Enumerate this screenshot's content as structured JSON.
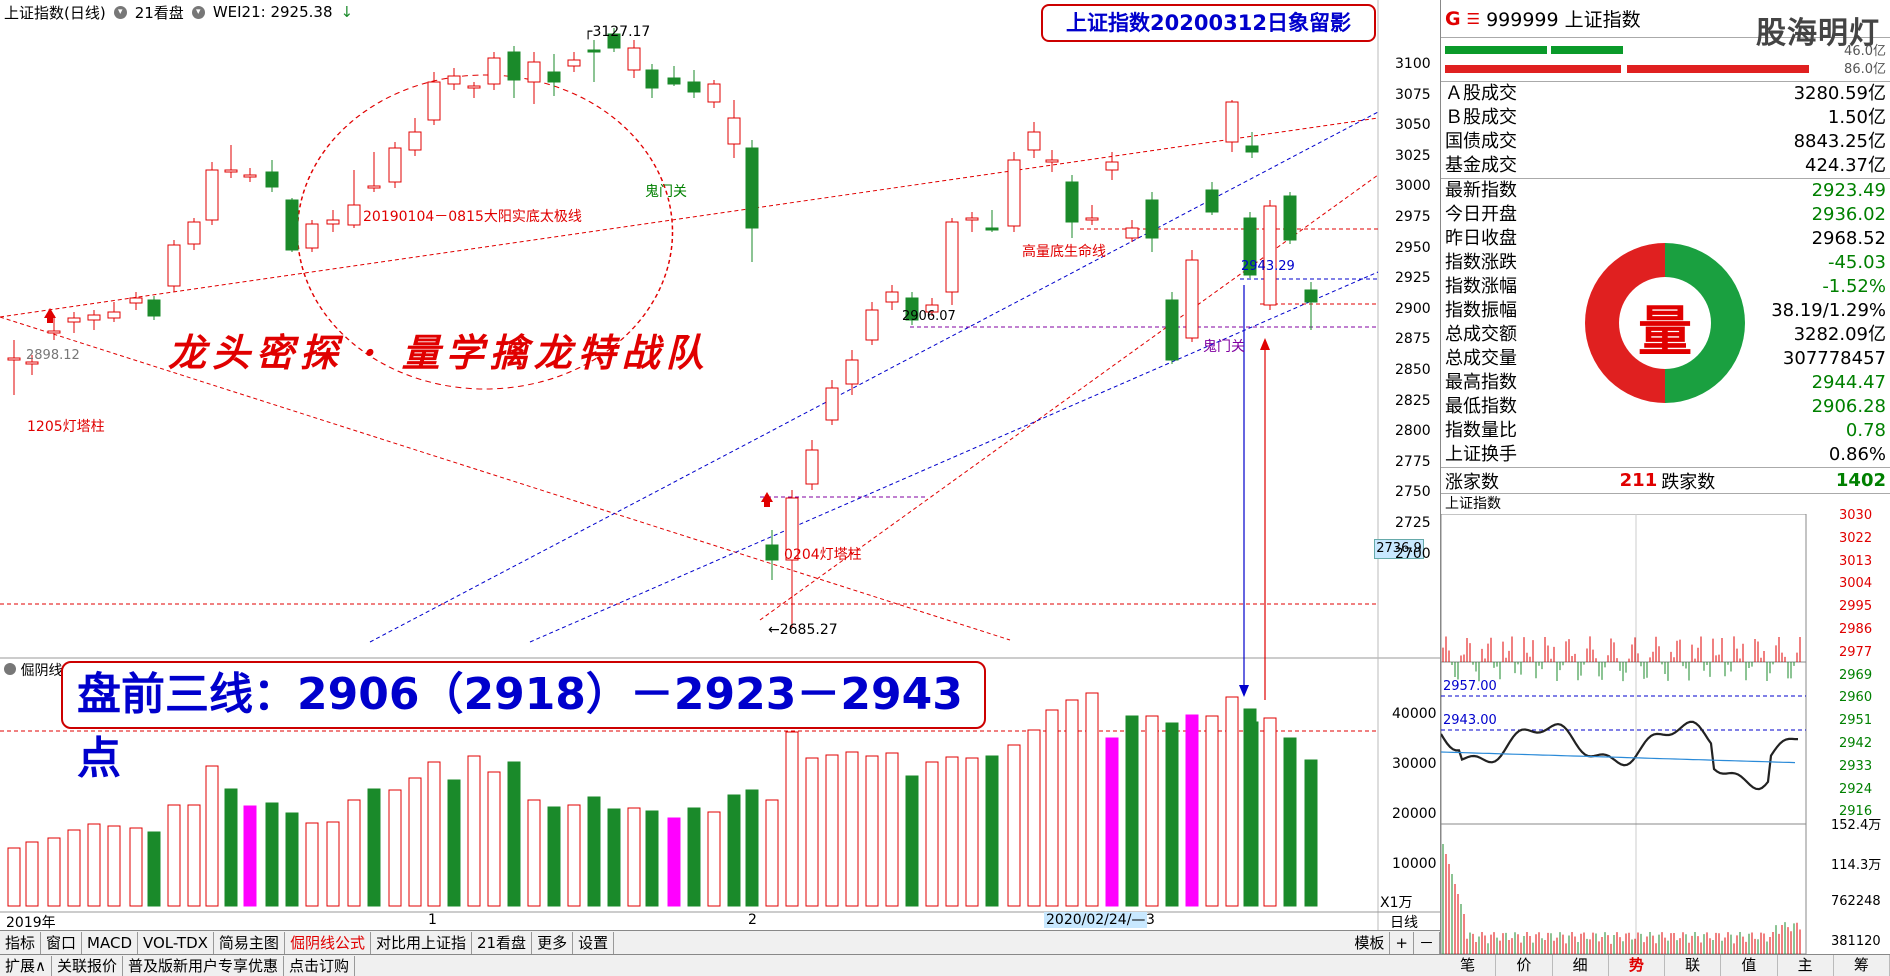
{
  "topbar": {
    "symbol_label": "上证指数(日线)",
    "view_label": "21看盘",
    "indicator": "WEI21: 2925.38"
  },
  "title_box": "上证指数20200312日象留影",
  "banner": "龙头密探 · 量学擒龙特战队",
  "big_box": "盘前三线：2906（2918）－2923－2943点",
  "annotations": {
    "peak": "3127.17",
    "trough": "2685.27",
    "line_label": "20190104－0815大阳实底太极线",
    "guimen1": "鬼门关",
    "guimen2": "鬼门关",
    "lifeline": "高量底生命线",
    "lamp1205": "1205灯塔柱",
    "lamp0204": "0204灯塔柱",
    "v2943": "2943.29",
    "v2906": "2906.07",
    "v2898": "2898.12",
    "price_tag": "2736.9"
  },
  "price_axis": [
    "3100",
    "3075",
    "3050",
    "3025",
    "3000",
    "2975",
    "2950",
    "2925",
    "2900",
    "2875",
    "2850",
    "2825",
    "2800",
    "2775",
    "2750",
    "2725",
    "2700"
  ],
  "vol_axis": [
    "40000",
    "30000",
    "20000",
    "10000",
    "X1万"
  ],
  "vol_label": "倔阴线",
  "date_axis": {
    "y2019": "2019年",
    "m1": "1",
    "m2": "2",
    "date_box": "2020/02/24/—",
    "m3": "3",
    "period": "日线"
  },
  "bottom_tabs": [
    "指标",
    "窗口",
    "MACD",
    "VOL-TDX",
    "简易主图",
    "倔阴线公式",
    "对比用上证指",
    "21看盘",
    "更多",
    "设置"
  ],
  "bottom_right": [
    "模板",
    "+",
    "－"
  ],
  "bottom_tabs2": [
    "扩展∧",
    "关联报价",
    "普及版新用户专享优惠",
    "点击订购"
  ],
  "right_panel": {
    "header_g": "G",
    "header_eq": "☰",
    "code": "999999 上证指数",
    "watermark": "股海明灯",
    "bar_vals": [
      "46.0亿",
      "86.0亿"
    ],
    "sec1": [
      {
        "label": "Ａ股成交",
        "value": "3280.59亿",
        "color": "black"
      },
      {
        "label": "Ｂ股成交",
        "value": "1.50亿",
        "color": "black"
      },
      {
        "label": "国债成交",
        "value": "8843.25亿",
        "color": "black"
      },
      {
        "label": "基金成交",
        "value": "424.37亿",
        "color": "black"
      }
    ],
    "sec2": [
      {
        "label": "最新指数",
        "value": "2923.49",
        "color": "green"
      },
      {
        "label": "今日开盘",
        "value": "2936.02",
        "color": "green"
      },
      {
        "label": "昨日收盘",
        "value": "2968.52",
        "color": "black"
      },
      {
        "label": "指数涨跌",
        "value": "-45.03",
        "color": "green"
      },
      {
        "label": "指数涨幅",
        "value": "-1.52%",
        "color": "green"
      },
      {
        "label": "指数振幅",
        "value": "38.19/1.29%",
        "color": "black"
      },
      {
        "label": "总成交额",
        "value": "3282.09亿",
        "color": "black"
      },
      {
        "label": "总成交量",
        "value": "307778457",
        "color": "black"
      },
      {
        "label": "最高指数",
        "value": "2944.47",
        "color": "green"
      },
      {
        "label": "最低指数",
        "value": "2906.28",
        "color": "green"
      },
      {
        "label": "指数量比",
        "value": "0.78",
        "color": "green"
      },
      {
        "label": "上证换手",
        "value": "0.86%",
        "color": "black"
      }
    ],
    "logo_char": "量",
    "up_label": "涨家数",
    "up_value": "211",
    "down_label": "跌家数",
    "down_value": "1402",
    "mini_title": "上证指数",
    "mini_axis": [
      "3030",
      "3022",
      "3013",
      "3004",
      "2995",
      "2986",
      "2977",
      "2969",
      "2960",
      "2951",
      "2942",
      "2933",
      "2924",
      "2916"
    ],
    "mini_vol_axis": [
      "152.4万",
      "114.3万",
      "762248",
      "381120"
    ],
    "mini_lines": [
      "2957.00",
      "2943.00"
    ],
    "tabs": [
      "笔",
      "价",
      "细",
      "势",
      "联",
      "值",
      "主",
      "筹"
    ]
  },
  "colors": {
    "up": "#e00000",
    "down": "#1a8a2a",
    "magenta": "#ff00ff"
  }
}
